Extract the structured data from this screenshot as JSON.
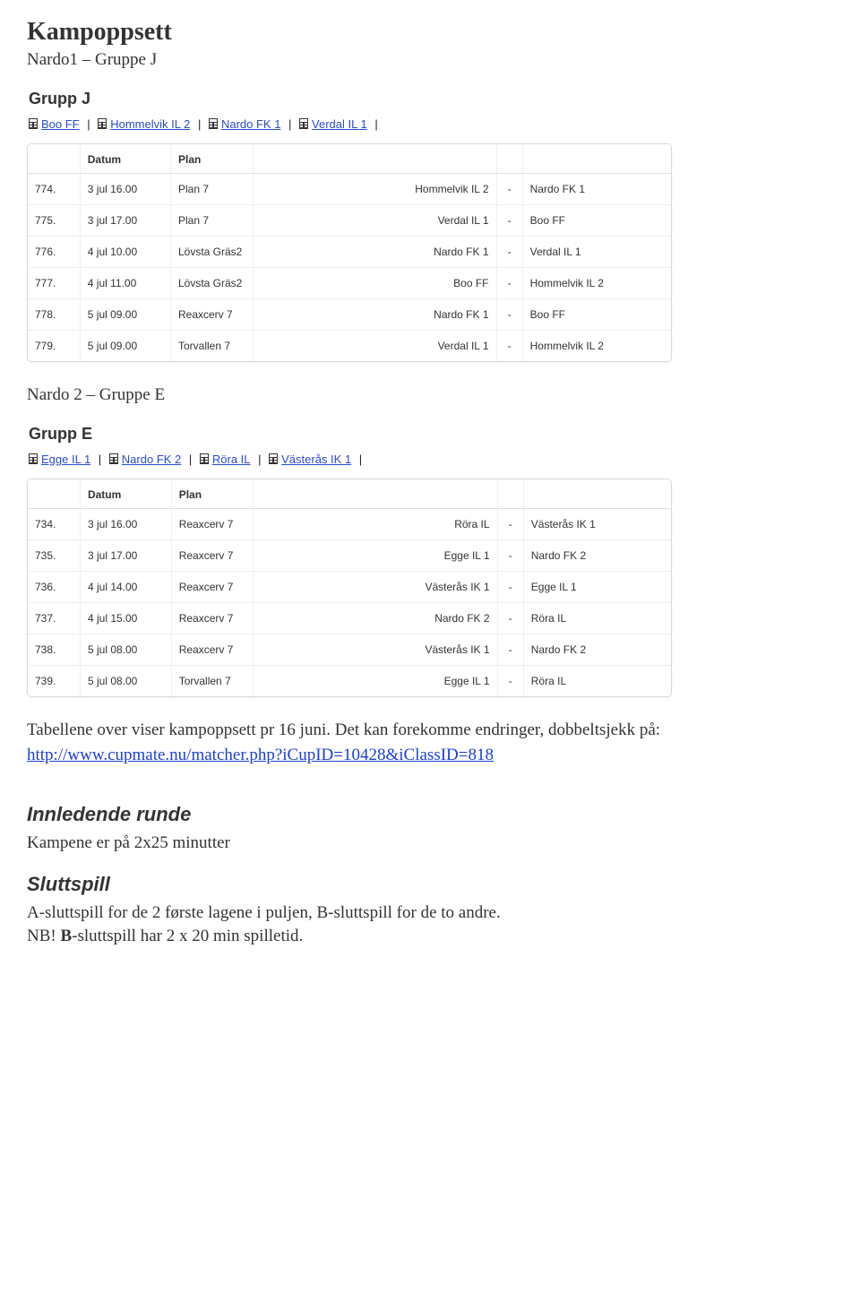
{
  "page": {
    "title": "Kampoppsett",
    "sub1": "Nardo1 – Gruppe J",
    "sub2": "Nardo 2 – Gruppe E"
  },
  "groupJ": {
    "title": "Grupp J",
    "teams": [
      "Boo FF",
      "Hommelvik IL 2",
      "Nardo FK 1",
      "Verdal IL 1"
    ],
    "headers": {
      "num": "",
      "date": "Datum",
      "plan": "Plan",
      "home": "",
      "sep": "",
      "away": ""
    },
    "rows": [
      {
        "num": "774.",
        "date": "3 jul 16.00",
        "plan": "Plan 7",
        "home": "Hommelvik IL 2",
        "away": "Nardo FK 1"
      },
      {
        "num": "775.",
        "date": "3 jul 17.00",
        "plan": "Plan 7",
        "home": "Verdal IL 1",
        "away": "Boo FF"
      },
      {
        "num": "776.",
        "date": "4 jul 10.00",
        "plan": "Lövsta Gräs2",
        "home": "Nardo FK 1",
        "away": "Verdal IL 1"
      },
      {
        "num": "777.",
        "date": "4 jul 11.00",
        "plan": "Lövsta Gräs2",
        "home": "Boo FF",
        "away": "Hommelvik IL 2"
      },
      {
        "num": "778.",
        "date": "5 jul 09.00",
        "plan": "Reaxcerv 7",
        "home": "Nardo FK 1",
        "away": "Boo FF"
      },
      {
        "num": "779.",
        "date": "5 jul 09.00",
        "plan": "Torvallen 7",
        "home": "Verdal IL 1",
        "away": "Hommelvik IL 2"
      }
    ]
  },
  "groupE": {
    "title": "Grupp E",
    "teams": [
      "Egge IL 1",
      "Nardo FK 2",
      "Röra IL",
      "Västerås IK 1"
    ],
    "headers": {
      "num": "",
      "date": "Datum",
      "plan": "Plan",
      "home": "",
      "sep": "",
      "away": ""
    },
    "rows": [
      {
        "num": "734.",
        "date": "3 jul 16.00",
        "plan": "Reaxcerv 7",
        "home": "Röra IL",
        "away": "Västerås IK 1"
      },
      {
        "num": "735.",
        "date": "3 jul 17.00",
        "plan": "Reaxcerv 7",
        "home": "Egge IL 1",
        "away": "Nardo FK 2"
      },
      {
        "num": "736.",
        "date": "4 jul 14.00",
        "plan": "Reaxcerv 7",
        "home": "Västerås IK 1",
        "away": "Egge IL 1"
      },
      {
        "num": "737.",
        "date": "4 jul 15.00",
        "plan": "Reaxcerv 7",
        "home": "Nardo FK 2",
        "away": "Röra IL"
      },
      {
        "num": "738.",
        "date": "5 jul 08.00",
        "plan": "Reaxcerv 7",
        "home": "Västerås IK 1",
        "away": "Nardo FK 2"
      },
      {
        "num": "739.",
        "date": "5 jul 08.00",
        "plan": "Torvallen 7",
        "home": "Egge IL 1",
        "away": "Röra IL"
      }
    ]
  },
  "footer": {
    "line1": "Tabellene over viser kampoppsett pr 16 juni. Det kan forekomme endringer, dobbeltsjekk på:",
    "link": "http://www.cupmate.nu/matcher.php?iCupID=10428&iClassID=818",
    "innledende_h": "Innledende runde",
    "innledende_t": "Kampene er på 2x25 minutter",
    "slutt_h": "Sluttspill",
    "slutt_t1": "A-sluttspill for de 2 første lagene i puljen, B-sluttspill for de to andre.",
    "slutt_t2_prefix": "NB! ",
    "slutt_t2_bold": "B",
    "slutt_t2_rest": "-sluttspill har 2 x 20 min spilletid."
  },
  "colors": {
    "link": "#2a4bcc",
    "border": "#d9d9d9"
  }
}
